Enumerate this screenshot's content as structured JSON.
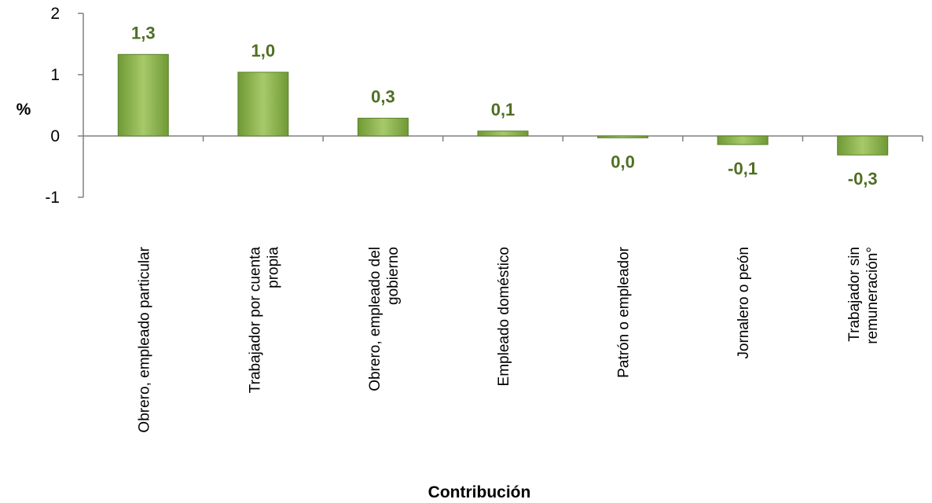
{
  "chart_data": {
    "type": "bar",
    "categories": [
      [
        "Obrero, empleado particular"
      ],
      [
        "Trabajador por cuenta",
        "propia"
      ],
      [
        "Obrero, empleado del",
        "gobierno"
      ],
      [
        "Empleado doméstico"
      ],
      [
        "Patrón o empleador"
      ],
      [
        "Jornalero o peón"
      ],
      [
        "Trabajador sin",
        "remuneración°"
      ]
    ],
    "values": [
      1.33,
      1.04,
      0.29,
      0.08,
      -0.03,
      -0.14,
      -0.31
    ],
    "data_labels": [
      "1,3",
      "1,0",
      "0,3",
      "0,1",
      "0,0",
      "-0,1",
      "-0,3"
    ],
    "yticks": [
      "-1",
      "0",
      "1",
      "2"
    ],
    "ylim": [
      -1,
      2
    ],
    "ylabel": "%",
    "xlabel": "Contribución",
    "colors": {
      "bar_fill_light": "#a8c96a",
      "bar_fill_dark": "#6f9a35",
      "bar_stroke": "#5a7f2a",
      "data_label": "#4f6f22",
      "axis": "#808080"
    },
    "grid": false,
    "legend": "none"
  }
}
